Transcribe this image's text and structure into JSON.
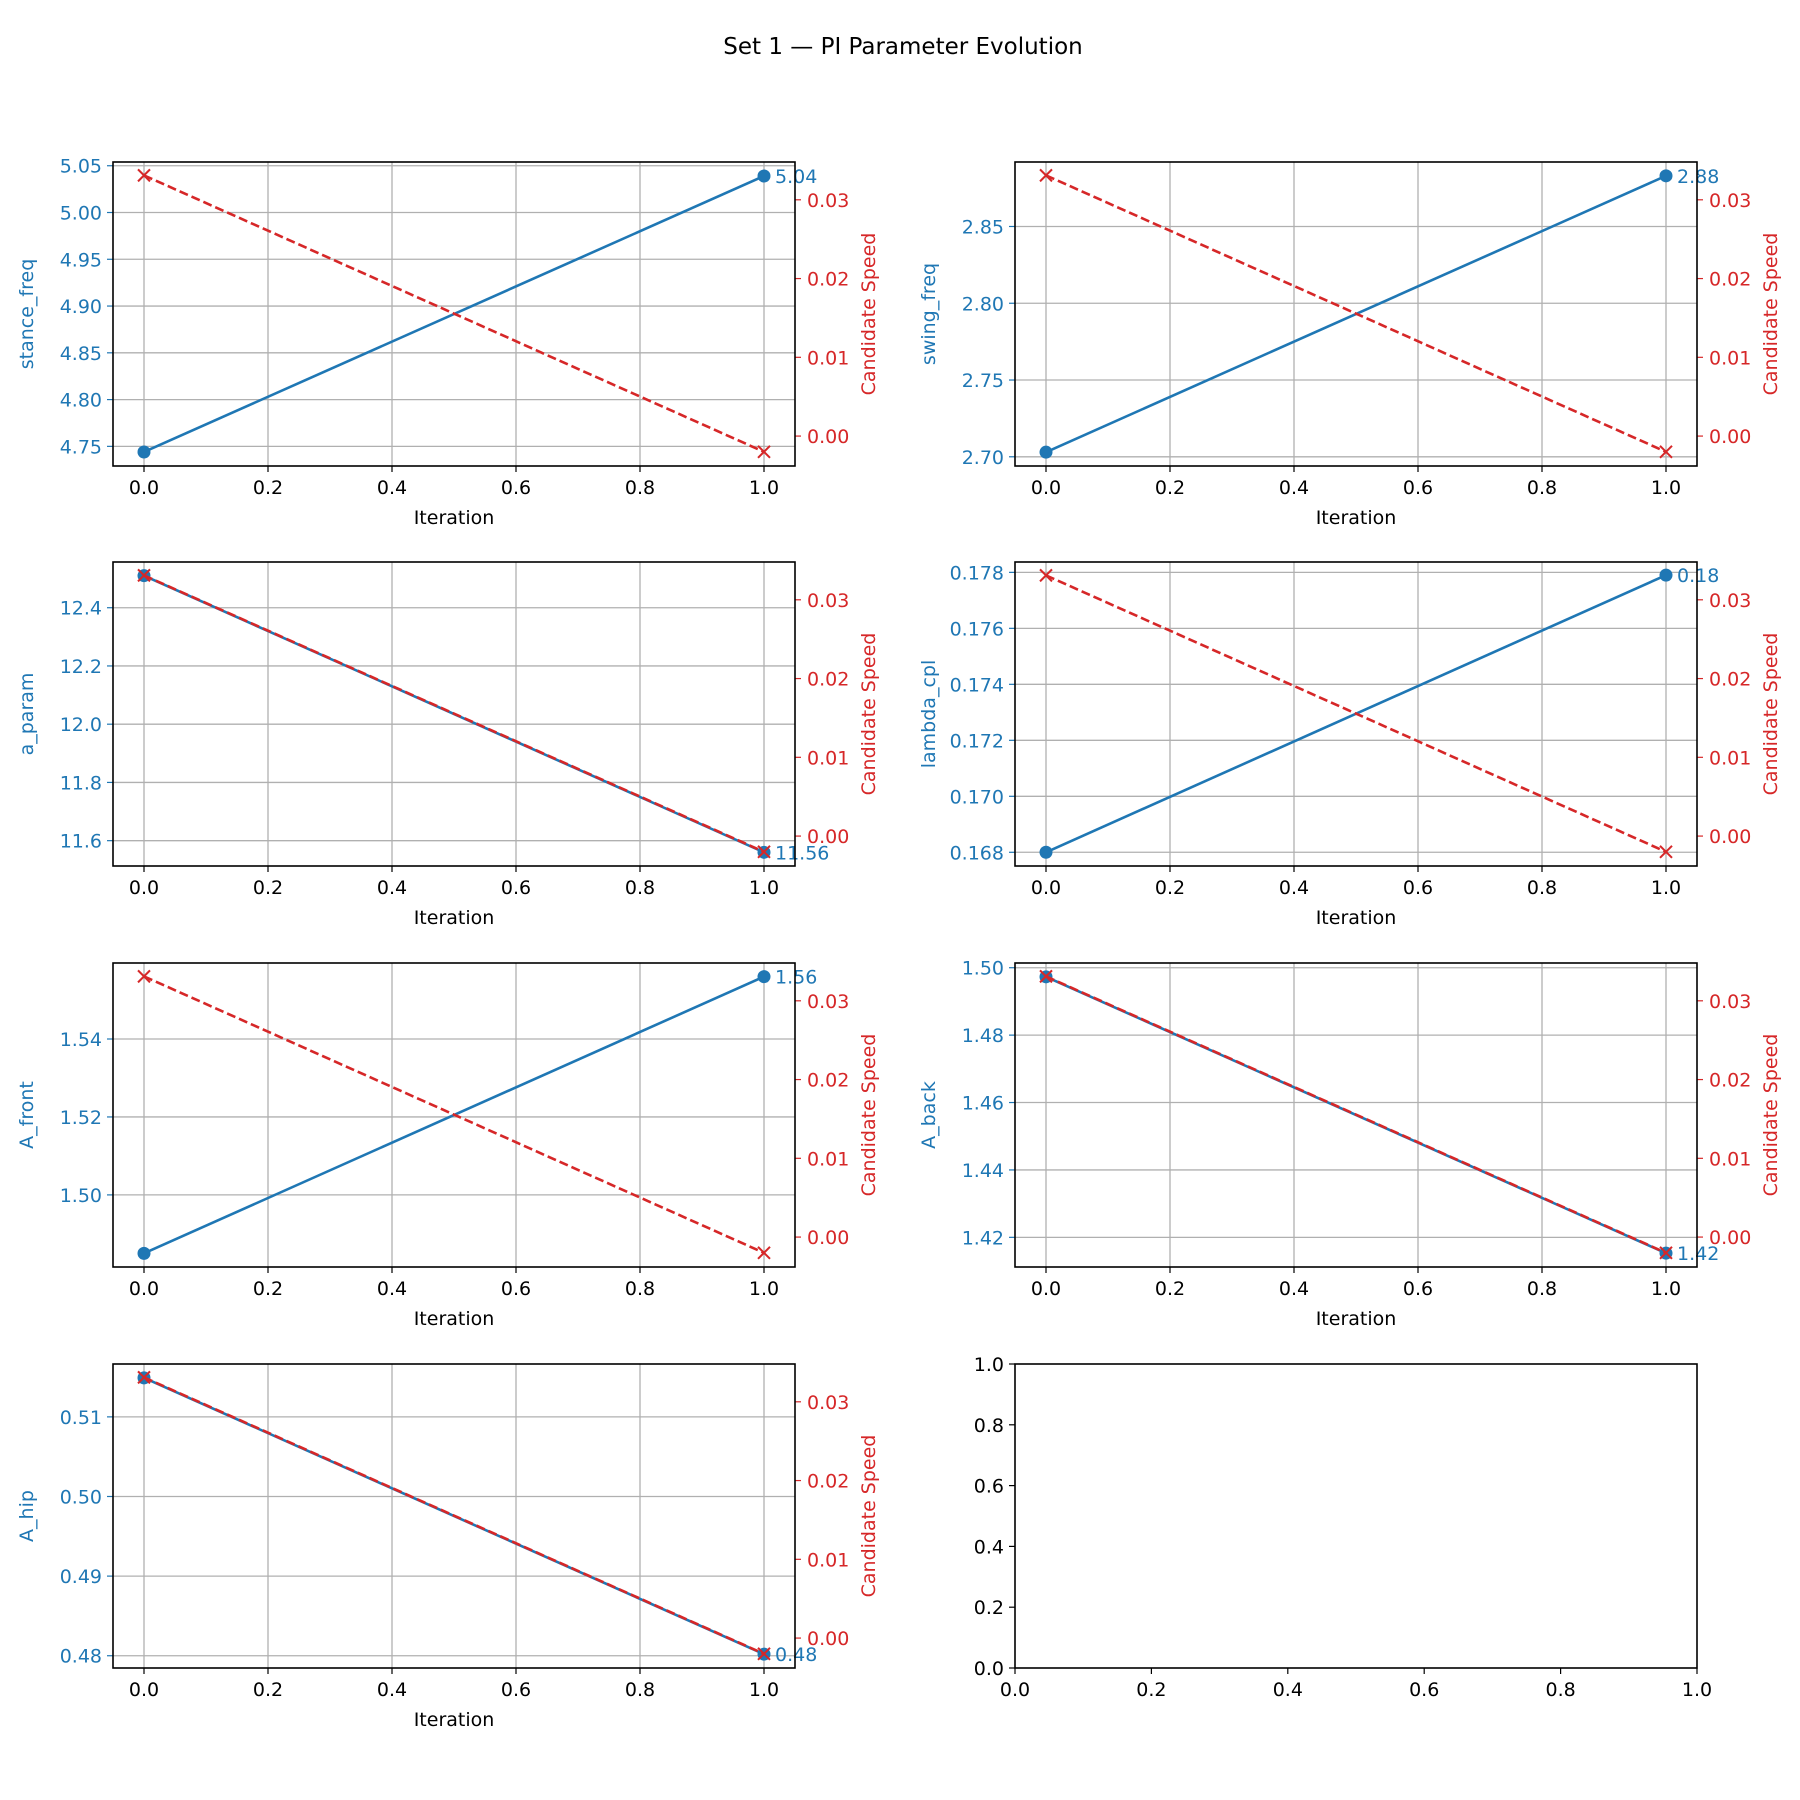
{
  "figure": {
    "title": "Set 1 — PI Parameter Evolution"
  },
  "colors": {
    "param": "#1f77b4",
    "speed": "#d62728",
    "grid": "#b0b0b0",
    "axis": "#000000"
  },
  "chart_data": [
    {
      "type": "line",
      "xlabel": "Iteration",
      "ylabel": "stance_freq",
      "y2label": "Candidate Speed",
      "x": [
        0.0,
        1.0
      ],
      "xlim": [
        -0.05,
        1.05
      ],
      "xticks": [
        0.0,
        0.2,
        0.4,
        0.6,
        0.8,
        1.0
      ],
      "series": [
        {
          "axis": "left",
          "values": [
            4.744,
            5.039
          ],
          "marker": "circle",
          "style": "solid"
        },
        {
          "axis": "right",
          "values": [
            0.0331,
            -0.002
          ],
          "marker": "x",
          "style": "dashed"
        }
      ],
      "ylim": [
        4.729,
        5.054
      ],
      "yticks": [
        4.75,
        4.8,
        4.85,
        4.9,
        4.95,
        5.0,
        5.05
      ],
      "y2lim": [
        -0.0038,
        0.0348
      ],
      "y2ticks": [
        0.0,
        0.01,
        0.02,
        0.03
      ],
      "annotation": "5.04",
      "annotation_index": 1,
      "grid": true
    },
    {
      "type": "line",
      "xlabel": "Iteration",
      "ylabel": "swing_freq",
      "y2label": "Candidate Speed",
      "x": [
        0.0,
        1.0
      ],
      "xlim": [
        -0.05,
        1.05
      ],
      "xticks": [
        0.0,
        0.2,
        0.4,
        0.6,
        0.8,
        1.0
      ],
      "series": [
        {
          "axis": "left",
          "values": [
            2.703,
            2.883
          ],
          "marker": "circle",
          "style": "solid"
        },
        {
          "axis": "right",
          "values": [
            0.0331,
            -0.002
          ],
          "marker": "x",
          "style": "dashed"
        }
      ],
      "ylim": [
        2.694,
        2.892
      ],
      "yticks": [
        2.7,
        2.75,
        2.8,
        2.85
      ],
      "y2lim": [
        -0.0038,
        0.0348
      ],
      "y2ticks": [
        0.0,
        0.01,
        0.02,
        0.03
      ],
      "annotation": "2.88",
      "annotation_index": 1,
      "grid": true
    },
    {
      "type": "line",
      "xlabel": "Iteration",
      "ylabel": "a_param",
      "y2label": "Candidate Speed",
      "x": [
        0.0,
        1.0
      ],
      "xlim": [
        -0.05,
        1.05
      ],
      "xticks": [
        0.0,
        0.2,
        0.4,
        0.6,
        0.8,
        1.0
      ],
      "series": [
        {
          "axis": "left",
          "values": [
            12.51,
            11.56
          ],
          "marker": "circle",
          "style": "solid"
        },
        {
          "axis": "right",
          "values": [
            0.0331,
            -0.002
          ],
          "marker": "x",
          "style": "dashed"
        }
      ],
      "ylim": [
        11.513,
        12.557
      ],
      "yticks": [
        11.6,
        11.8,
        12.0,
        12.2,
        12.4
      ],
      "y2lim": [
        -0.0038,
        0.0348
      ],
      "y2ticks": [
        0.0,
        0.01,
        0.02,
        0.03
      ],
      "annotation": "11.56",
      "annotation_index": 1,
      "grid": true
    },
    {
      "type": "line",
      "xlabel": "Iteration",
      "ylabel": "lambda_cpl",
      "y2label": "Candidate Speed",
      "x": [
        0.0,
        1.0
      ],
      "xlim": [
        -0.05,
        1.05
      ],
      "xticks": [
        0.0,
        0.2,
        0.4,
        0.6,
        0.8,
        1.0
      ],
      "series": [
        {
          "axis": "left",
          "values": [
            0.168,
            0.1779
          ],
          "marker": "circle",
          "style": "solid"
        },
        {
          "axis": "right",
          "values": [
            0.0331,
            -0.002
          ],
          "marker": "x",
          "style": "dashed"
        }
      ],
      "ylim": [
        0.16751,
        0.17837
      ],
      "yticks": [
        0.168,
        0.17,
        0.172,
        0.174,
        0.176,
        0.178
      ],
      "y2lim": [
        -0.0038,
        0.0348
      ],
      "y2ticks": [
        0.0,
        0.01,
        0.02,
        0.03
      ],
      "annotation": "0.18",
      "annotation_index": 1,
      "grid": true
    },
    {
      "type": "line",
      "xlabel": "Iteration",
      "ylabel": "A_front",
      "y2label": "Candidate Speed",
      "x": [
        0.0,
        1.0
      ],
      "xlim": [
        -0.05,
        1.05
      ],
      "xticks": [
        0.0,
        0.2,
        0.4,
        0.6,
        0.8,
        1.0
      ],
      "series": [
        {
          "axis": "left",
          "values": [
            1.485,
            1.556
          ],
          "marker": "circle",
          "style": "solid"
        },
        {
          "axis": "right",
          "values": [
            0.0331,
            -0.002
          ],
          "marker": "x",
          "style": "dashed"
        }
      ],
      "ylim": [
        1.4815,
        1.5595
      ],
      "yticks": [
        1.5,
        1.52,
        1.54
      ],
      "y2lim": [
        -0.0038,
        0.0348
      ],
      "y2ticks": [
        0.0,
        0.01,
        0.02,
        0.03
      ],
      "annotation": "1.56",
      "annotation_index": 1,
      "grid": true
    },
    {
      "type": "line",
      "xlabel": "Iteration",
      "ylabel": "A_back",
      "y2label": "Candidate Speed",
      "x": [
        0.0,
        1.0
      ],
      "xlim": [
        -0.05,
        1.05
      ],
      "xticks": [
        0.0,
        0.2,
        0.4,
        0.6,
        0.8,
        1.0
      ],
      "series": [
        {
          "axis": "left",
          "values": [
            1.4973,
            1.4153
          ],
          "marker": "circle",
          "style": "solid"
        },
        {
          "axis": "right",
          "values": [
            0.0331,
            -0.002
          ],
          "marker": "x",
          "style": "dashed"
        }
      ],
      "ylim": [
        1.4112,
        1.5014
      ],
      "yticks": [
        1.42,
        1.44,
        1.46,
        1.48,
        1.5
      ],
      "y2lim": [
        -0.0038,
        0.0348
      ],
      "y2ticks": [
        0.0,
        0.01,
        0.02,
        0.03
      ],
      "annotation": "1.42",
      "annotation_index": 1,
      "grid": true
    },
    {
      "type": "line",
      "xlabel": "Iteration",
      "ylabel": "A_hip",
      "y2label": "Candidate Speed",
      "x": [
        0.0,
        1.0
      ],
      "xlim": [
        -0.05,
        1.05
      ],
      "xticks": [
        0.0,
        0.2,
        0.4,
        0.6,
        0.8,
        1.0
      ],
      "series": [
        {
          "axis": "left",
          "values": [
            0.5149,
            0.4802
          ],
          "marker": "circle",
          "style": "solid"
        },
        {
          "axis": "right",
          "values": [
            0.0331,
            -0.002
          ],
          "marker": "x",
          "style": "dashed"
        }
      ],
      "ylim": [
        0.47846,
        0.51664
      ],
      "yticks": [
        0.48,
        0.49,
        0.5,
        0.51
      ],
      "y2lim": [
        -0.0038,
        0.0348
      ],
      "y2ticks": [
        0.0,
        0.01,
        0.02,
        0.03
      ],
      "annotation": "0.48",
      "annotation_index": 1,
      "grid": true
    },
    {
      "type": "line",
      "empty": true,
      "xlim": [
        0.0,
        1.0
      ],
      "xticks": [
        0.0,
        0.2,
        0.4,
        0.6,
        0.8,
        1.0
      ],
      "ylim": [
        0.0,
        1.0
      ],
      "yticks": [
        0.0,
        0.2,
        0.4,
        0.6,
        0.8,
        1.0
      ],
      "grid": false
    }
  ]
}
